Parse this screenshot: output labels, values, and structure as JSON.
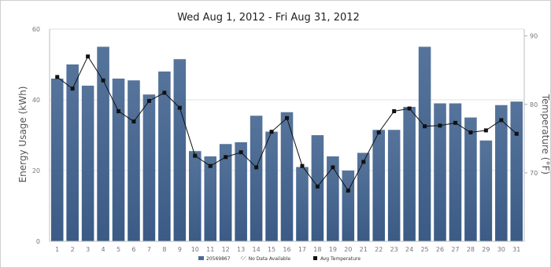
{
  "chart_data": {
    "type": "bar",
    "title": "Wed Aug 1, 2012 - Fri Aug 31, 2012",
    "xlabel": "",
    "ylabel": "Energy Usage (kWh)",
    "y2label": "Temperature (°F)",
    "categories": [
      "1",
      "2",
      "3",
      "4",
      "5",
      "6",
      "7",
      "8",
      "9",
      "10",
      "11",
      "12",
      "13",
      "14",
      "15",
      "16",
      "17",
      "18",
      "19",
      "20",
      "21",
      "22",
      "23",
      "24",
      "25",
      "26",
      "27",
      "28",
      "29",
      "30",
      "31"
    ],
    "ylim": [
      0,
      60
    ],
    "yticks": [
      "0",
      "20",
      "40",
      "60"
    ],
    "y2lim": [
      60,
      91
    ],
    "y2ticks": [
      "70",
      "80",
      "90"
    ],
    "grid": true,
    "legend_position": "bottom",
    "series": [
      {
        "name": "20569867",
        "type": "bar",
        "color": "#4a6a94",
        "values": [
          46,
          50,
          44,
          55,
          46,
          45.5,
          41.5,
          48,
          51.5,
          25.5,
          24,
          27.5,
          28,
          35.5,
          31,
          36.5,
          21,
          30,
          24,
          20,
          25,
          31.5,
          31.5,
          38,
          55,
          39,
          39,
          35,
          28.5,
          38.5,
          39.5
        ]
      },
      {
        "name": "Avg Temperature",
        "type": "line",
        "color": "#111111",
        "values": [
          84,
          82.3,
          87,
          83.5,
          79,
          77.5,
          80.5,
          81.7,
          79.5,
          72.5,
          71,
          72.3,
          73,
          70.8,
          76,
          78,
          71,
          68,
          70.8,
          67.4,
          71.6,
          75.9,
          79,
          79.4,
          76.8,
          76.9,
          77.3,
          75.9,
          76.2,
          77.7,
          75.7
        ]
      }
    ],
    "legend": [
      {
        "label": "20569867",
        "color": "#4a6a94",
        "icon": "bar-swatch"
      },
      {
        "label": "No Data Available",
        "color": "#888888",
        "icon": "hatched-swatch"
      },
      {
        "label": "Avg Temperature",
        "color": "#111111",
        "icon": "square-marker"
      }
    ]
  }
}
